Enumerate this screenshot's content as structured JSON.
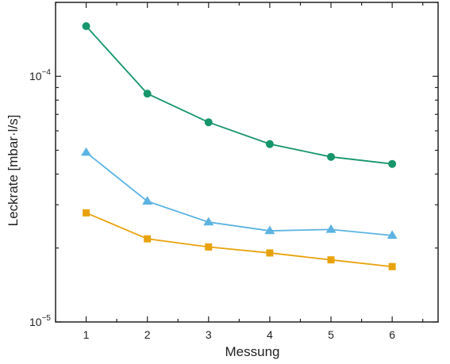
{
  "chart_data": {
    "type": "line",
    "title": "",
    "xlabel": "Messung",
    "ylabel": "Leckrate [mbar·l/s]",
    "x": [
      1,
      2,
      3,
      4,
      5,
      6
    ],
    "xlim": [
      0.5,
      6.75
    ],
    "ylim": [
      1e-05,
      0.0002
    ],
    "yscale": "log",
    "grid": false,
    "legend": "none",
    "xticks": [
      "1",
      "2",
      "3",
      "4",
      "5",
      "6"
    ],
    "yticks": [
      {
        "value": 1e-05,
        "base": "10",
        "exp": "−5"
      },
      {
        "value": 0.0001,
        "base": "10",
        "exp": "−4"
      }
    ],
    "series": [
      {
        "values": [
          0.00016,
          8.5e-05,
          6.5e-05,
          5.3e-05,
          4.7e-05,
          4.4e-05
        ],
        "color": "#17956b",
        "marker": "circle"
      },
      {
        "values": [
          4.9e-05,
          3.1e-05,
          2.55e-05,
          2.35e-05,
          2.38e-05,
          2.25e-05
        ],
        "color": "#5cb3e2",
        "marker": "triangle"
      },
      {
        "values": [
          2.78e-05,
          2.18e-05,
          2.02e-05,
          1.91e-05,
          1.79e-05,
          1.68e-05
        ],
        "color": "#e8a20c",
        "marker": "square"
      }
    ]
  }
}
